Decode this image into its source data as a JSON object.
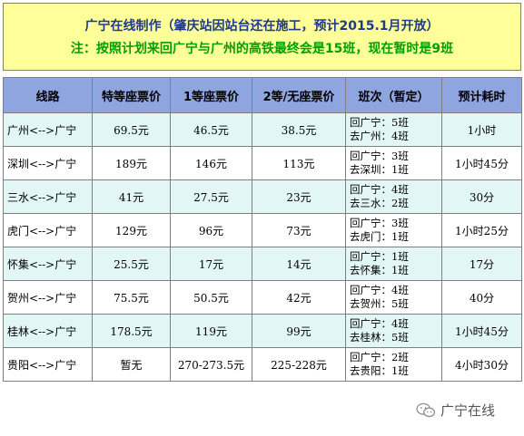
{
  "banner": {
    "line1": "广宁在线制作（肇庆站因站台还在施工，预计2015.1月开放）",
    "line2": "注：按照计划来回广宁与广州的高铁最终会是15班，现在暂时是9班"
  },
  "table": {
    "headers": [
      "线路",
      "特等座票价",
      "1等座票价",
      "2等/无座票价",
      "班次（暂定）",
      "预计耗时"
    ],
    "rows": [
      {
        "route": "广州<-->广宁",
        "special": "69.5元",
        "first": "46.5元",
        "second": "38.5元",
        "trips": [
          "回广宁：5班",
          "去广州：4班"
        ],
        "duration": "1小时"
      },
      {
        "route": "深圳<-->广宁",
        "special": "189元",
        "first": "146元",
        "second": "113元",
        "trips": [
          "回广宁：3班",
          "去深圳：1班"
        ],
        "duration": "1小时45分"
      },
      {
        "route": "三水<-->广宁",
        "special": "41元",
        "first": "27.5元",
        "second": "23元",
        "trips": [
          "回广宁：4班",
          "去三水：2班"
        ],
        "duration": "30分"
      },
      {
        "route": "虎门<-->广宁",
        "special": "129元",
        "first": "96元",
        "second": "73元",
        "trips": [
          "回广宁：3班",
          "去虎门：1班"
        ],
        "duration": "1小时25分"
      },
      {
        "route": "怀集<-->广宁",
        "special": "25.5元",
        "first": "17元",
        "second": "14元",
        "trips": [
          "回广宁：1班",
          "去怀集：1班"
        ],
        "duration": "17分"
      },
      {
        "route": "贺州<-->广宁",
        "special": "75.5元",
        "first": "50.5元",
        "second": "42元",
        "trips": [
          "回广宁：4班",
          "去贺州：5班"
        ],
        "duration": "40分"
      },
      {
        "route": "桂林<-->广宁",
        "special": "178.5元",
        "first": "119元",
        "second": "99元",
        "trips": [
          "回广宁：4班",
          "去桂林：5班"
        ],
        "duration": "1小时45分"
      },
      {
        "route": "贵阳<-->广宁",
        "special": "暂无",
        "first": "270-273.5元",
        "second": "225-228元",
        "trips": [
          "回广宁：2班",
          "去贵阳：1班"
        ],
        "duration": "4小时30分"
      }
    ]
  },
  "watermark": {
    "text": "广宁在线",
    "icon": "wechat-icon"
  },
  "colors": {
    "banner_bg": "#ffff99",
    "header_bg": "#8fa5e0",
    "alt_row_bg": "#e3f6f6",
    "title_blue": "#1f3a8a",
    "note_green": "#00a000"
  }
}
